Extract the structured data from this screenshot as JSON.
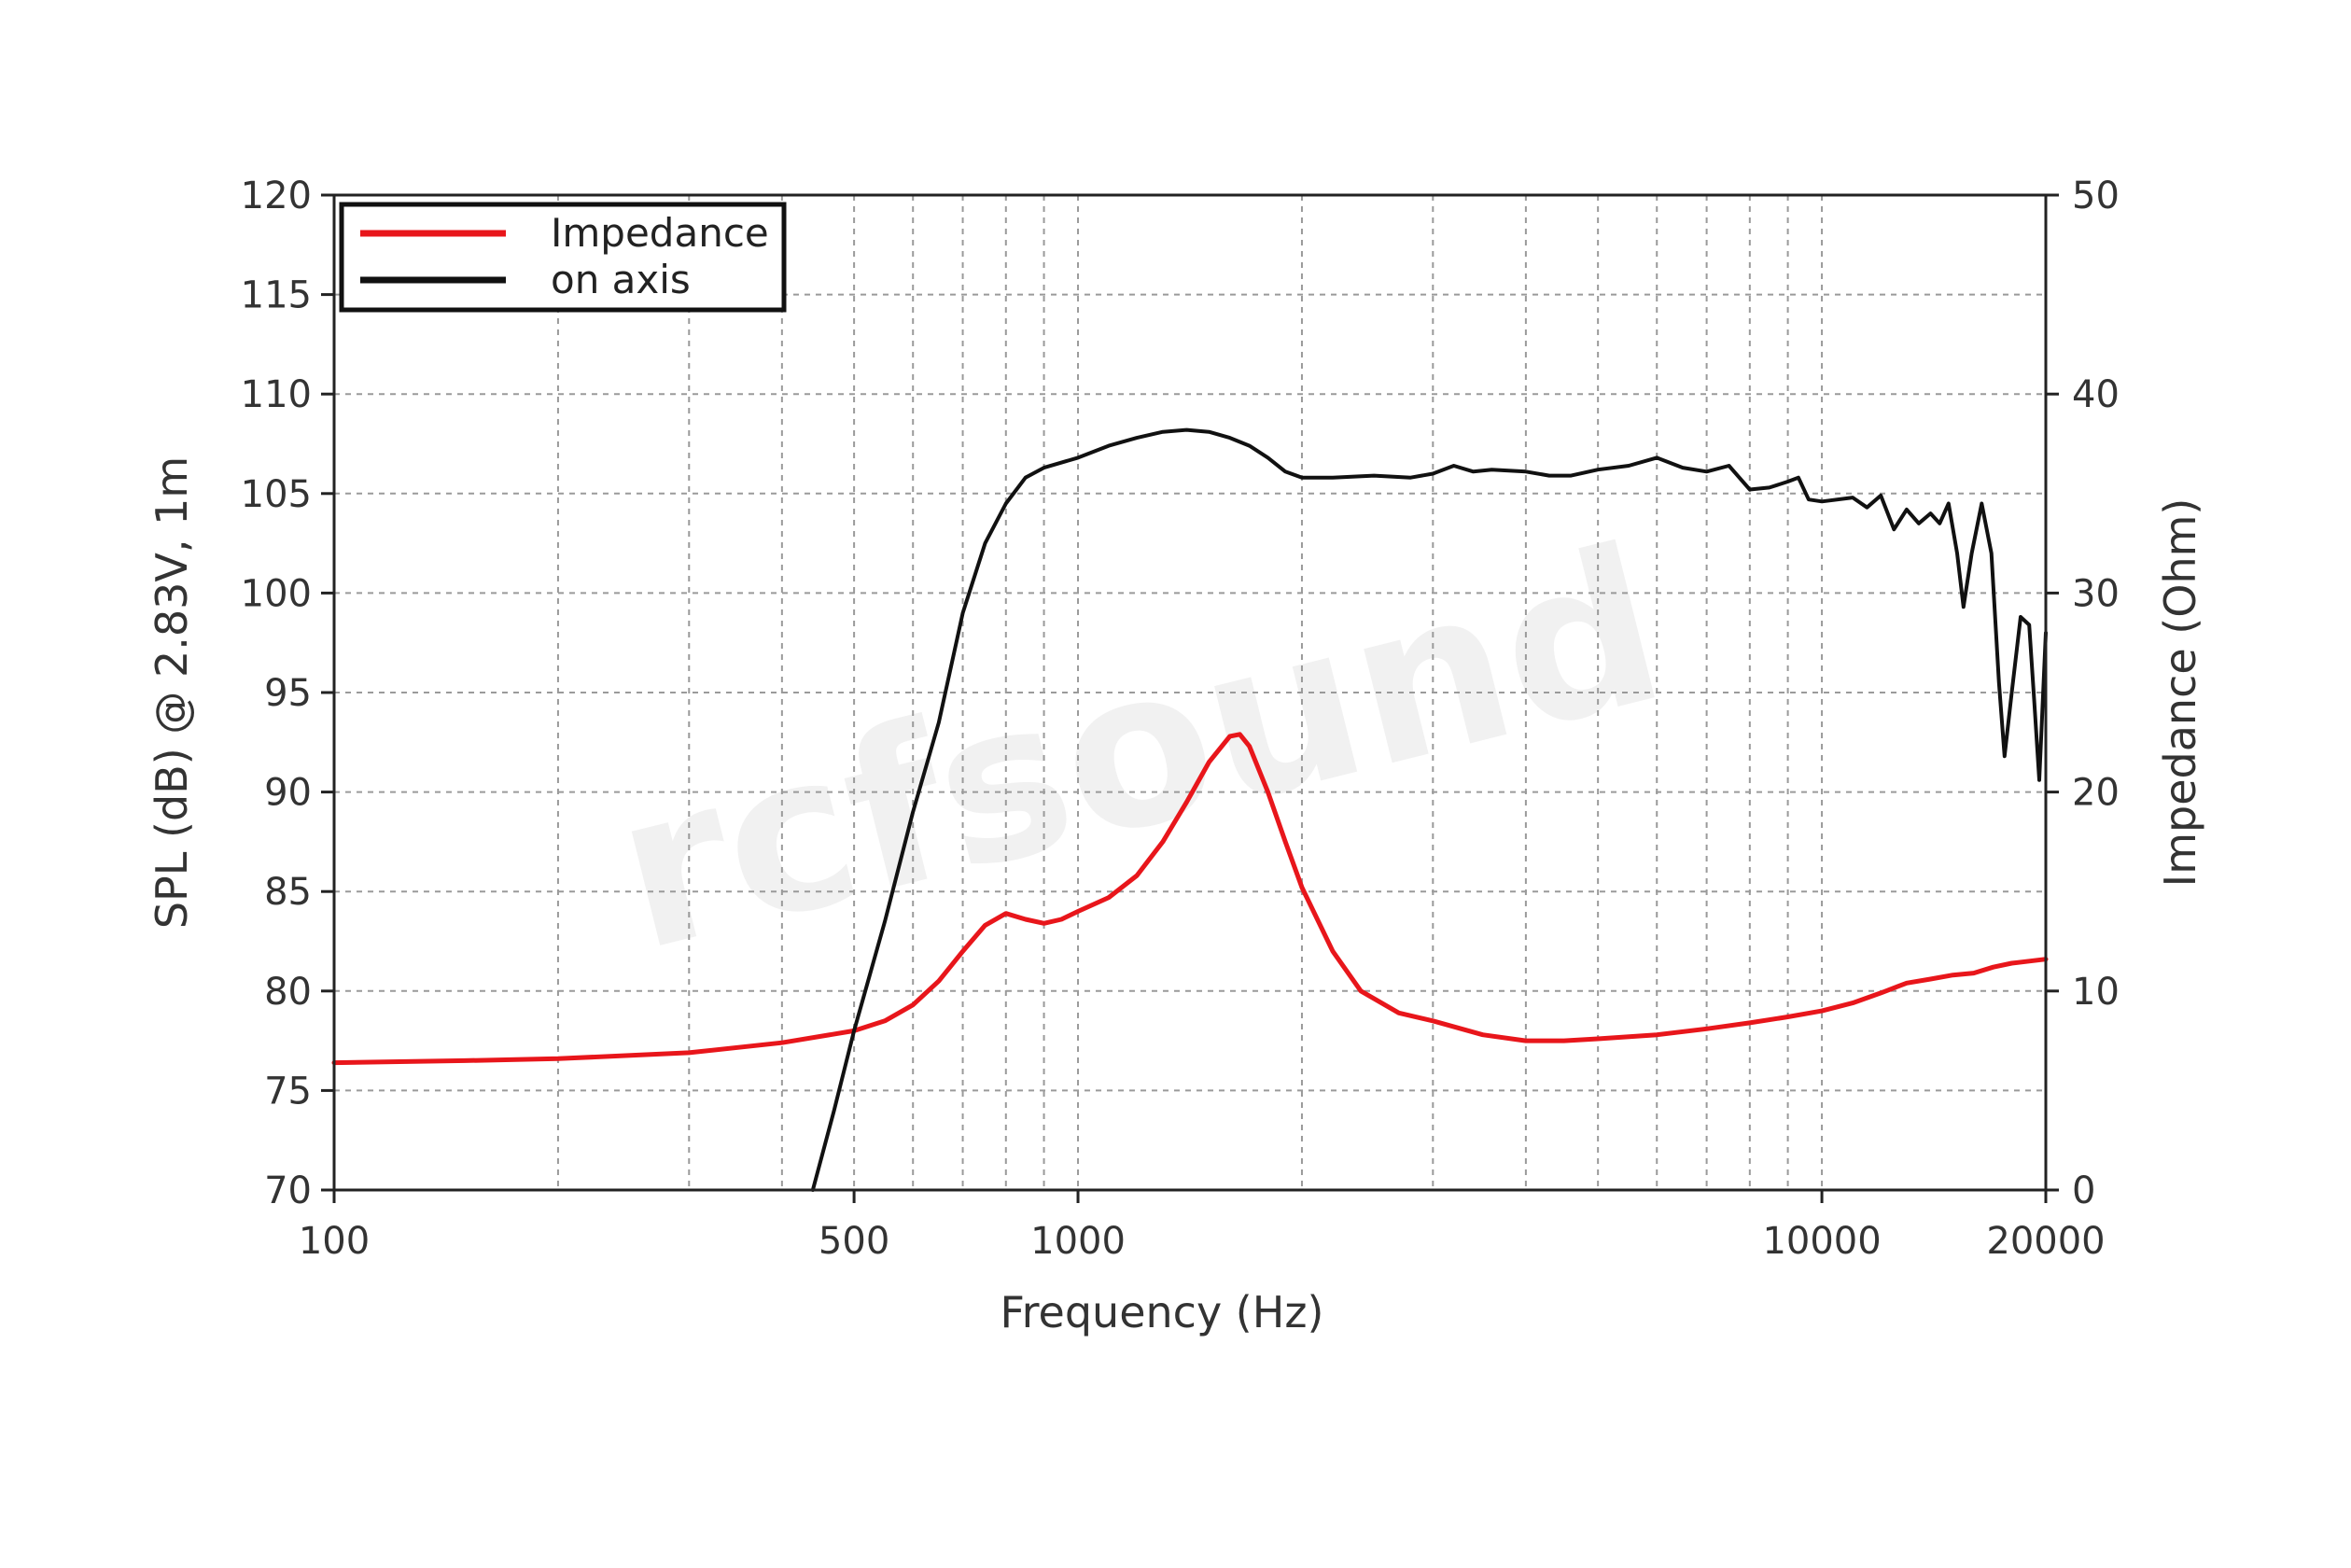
{
  "chart_data": {
    "type": "line",
    "title": "",
    "xlabel": "Frequency (Hz)",
    "ylabel": "SPL (dB) @ 2.83V, 1m",
    "y2label": "Impedance (Ohm)",
    "x_scale": "log",
    "xlim": [
      100,
      20000
    ],
    "ylim": [
      70,
      120
    ],
    "y2lim": [
      0,
      50
    ],
    "grid": true,
    "legend_position": "top-left",
    "x_tick_labels": [
      {
        "value": 100,
        "label": "100"
      },
      {
        "value": 500,
        "label": "500"
      },
      {
        "value": 1000,
        "label": "1000"
      },
      {
        "value": 10000,
        "label": "10000"
      },
      {
        "value": 20000,
        "label": "20000"
      }
    ],
    "y_ticks": [
      70,
      75,
      80,
      85,
      90,
      95,
      100,
      105,
      110,
      115,
      120
    ],
    "y2_ticks": [
      0,
      10,
      20,
      30,
      40,
      50
    ],
    "watermark_text": "rcfsound",
    "series": [
      {
        "name": "Impedance",
        "axis": "right",
        "color": "#e8161b",
        "points": [
          [
            100,
            6.4
          ],
          [
            150,
            6.5
          ],
          [
            200,
            6.6
          ],
          [
            300,
            6.9
          ],
          [
            400,
            7.4
          ],
          [
            500,
            8.0
          ],
          [
            550,
            8.5
          ],
          [
            600,
            9.3
          ],
          [
            650,
            10.5
          ],
          [
            700,
            12.0
          ],
          [
            750,
            13.3
          ],
          [
            800,
            13.9
          ],
          [
            850,
            13.6
          ],
          [
            900,
            13.4
          ],
          [
            950,
            13.6
          ],
          [
            1000,
            14.0
          ],
          [
            1100,
            14.7
          ],
          [
            1200,
            15.8
          ],
          [
            1300,
            17.5
          ],
          [
            1400,
            19.5
          ],
          [
            1500,
            21.5
          ],
          [
            1600,
            22.8
          ],
          [
            1650,
            22.9
          ],
          [
            1700,
            22.3
          ],
          [
            1800,
            20.0
          ],
          [
            1900,
            17.5
          ],
          [
            2000,
            15.2
          ],
          [
            2200,
            12.0
          ],
          [
            2400,
            10.0
          ],
          [
            2700,
            8.9
          ],
          [
            3000,
            8.5
          ],
          [
            3500,
            7.8
          ],
          [
            4000,
            7.5
          ],
          [
            4500,
            7.5
          ],
          [
            5000,
            7.6
          ],
          [
            6000,
            7.8
          ],
          [
            7000,
            8.1
          ],
          [
            8000,
            8.4
          ],
          [
            9000,
            8.7
          ],
          [
            10000,
            9.0
          ],
          [
            11000,
            9.4
          ],
          [
            12000,
            9.9
          ],
          [
            13000,
            10.4
          ],
          [
            14000,
            10.6
          ],
          [
            15000,
            10.8
          ],
          [
            16000,
            10.9
          ],
          [
            17000,
            11.2
          ],
          [
            18000,
            11.4
          ],
          [
            19000,
            11.5
          ],
          [
            20000,
            11.6
          ]
        ]
      },
      {
        "name": "on axis",
        "axis": "left",
        "color": "#111111",
        "points": [
          [
            440,
            70.0
          ],
          [
            470,
            74.0
          ],
          [
            500,
            78.0
          ],
          [
            550,
            83.5
          ],
          [
            600,
            89.0
          ],
          [
            650,
            93.5
          ],
          [
            700,
            99.0
          ],
          [
            750,
            102.5
          ],
          [
            800,
            104.5
          ],
          [
            850,
            105.8
          ],
          [
            900,
            106.3
          ],
          [
            1000,
            106.8
          ],
          [
            1100,
            107.4
          ],
          [
            1200,
            107.8
          ],
          [
            1300,
            108.1
          ],
          [
            1400,
            108.2
          ],
          [
            1500,
            108.1
          ],
          [
            1600,
            107.8
          ],
          [
            1700,
            107.4
          ],
          [
            1800,
            106.8
          ],
          [
            1900,
            106.1
          ],
          [
            2000,
            105.8
          ],
          [
            2200,
            105.8
          ],
          [
            2500,
            105.9
          ],
          [
            2800,
            105.8
          ],
          [
            3000,
            106.0
          ],
          [
            3200,
            106.4
          ],
          [
            3400,
            106.1
          ],
          [
            3600,
            106.2
          ],
          [
            4000,
            106.1
          ],
          [
            4300,
            105.9
          ],
          [
            4600,
            105.9
          ],
          [
            5000,
            106.2
          ],
          [
            5500,
            106.4
          ],
          [
            6000,
            106.8
          ],
          [
            6500,
            106.3
          ],
          [
            7000,
            106.1
          ],
          [
            7500,
            106.4
          ],
          [
            8000,
            105.2
          ],
          [
            8500,
            105.3
          ],
          [
            9000,
            105.6
          ],
          [
            9300,
            105.8
          ],
          [
            9600,
            104.7
          ],
          [
            10000,
            104.6
          ],
          [
            11000,
            104.8
          ],
          [
            11500,
            104.3
          ],
          [
            12000,
            104.9
          ],
          [
            12500,
            103.2
          ],
          [
            13000,
            104.2
          ],
          [
            13500,
            103.5
          ],
          [
            14000,
            104.0
          ],
          [
            14400,
            103.5
          ],
          [
            14800,
            104.5
          ],
          [
            15200,
            102.0
          ],
          [
            15500,
            99.3
          ],
          [
            15900,
            102.0
          ],
          [
            16400,
            104.5
          ],
          [
            16900,
            102.0
          ],
          [
            17300,
            95.5
          ],
          [
            17600,
            91.8
          ],
          [
            18000,
            95.0
          ],
          [
            18500,
            98.8
          ],
          [
            19000,
            98.4
          ],
          [
            19300,
            94.5
          ],
          [
            19600,
            90.6
          ],
          [
            20000,
            98.0
          ]
        ]
      }
    ]
  }
}
